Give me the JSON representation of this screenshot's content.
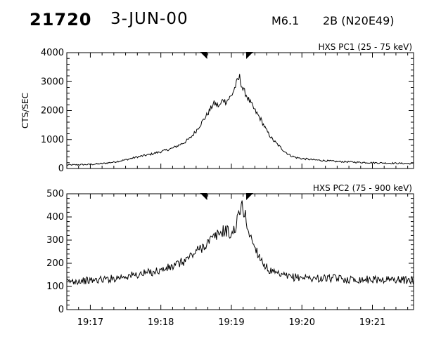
{
  "header": {
    "event_id": "21720",
    "date": "3-JUN-00",
    "flare_class": "M6.1",
    "optical_loc": "2B (N20E49)"
  },
  "chart_data": [
    {
      "type": "line",
      "title": "HXS PC1 (25 - 75 keV)",
      "ylabel": "CTS/SEC",
      "ylim": [
        0,
        4000
      ],
      "yticks": [
        0,
        1000,
        2000,
        3000,
        4000
      ],
      "tick_labels_y": [
        "0",
        "1000",
        "2000",
        "3000",
        "4000"
      ],
      "xlim": [
        "19:16:40",
        "19:21:35"
      ],
      "markers": [
        "19:18:37",
        "19:19:15"
      ],
      "series": [
        {
          "x": [
            "19:16:40",
            "19:16:50",
            "19:17:00",
            "19:17:10",
            "19:17:20",
            "19:17:30",
            "19:17:40",
            "19:17:50",
            "19:18:00",
            "19:18:10",
            "19:18:15",
            "19:18:20",
            "19:18:25",
            "19:18:30",
            "19:18:35",
            "19:18:40",
            "19:18:45",
            "19:18:50",
            "19:18:53",
            "19:18:55",
            "19:19:00",
            "19:19:02",
            "19:19:05",
            "19:19:07",
            "19:19:10",
            "19:19:12",
            "19:19:15",
            "19:19:20",
            "19:19:25",
            "19:19:30",
            "19:19:35",
            "19:19:40",
            "19:19:45",
            "19:19:50",
            "19:19:55",
            "19:20:00",
            "19:20:10",
            "19:20:20",
            "19:20:30",
            "19:20:40",
            "19:20:50",
            "19:21:00",
            "19:21:10",
            "19:21:20",
            "19:21:35"
          ],
          "values": [
            120,
            130,
            140,
            170,
            220,
            300,
            400,
            480,
            580,
            700,
            800,
            900,
            1050,
            1300,
            1600,
            1900,
            2250,
            2150,
            2400,
            2300,
            2500,
            2700,
            3000,
            3150,
            2700,
            2600,
            2350,
            2000,
            1700,
            1300,
            1000,
            800,
            600,
            450,
            380,
            340,
            300,
            270,
            240,
            230,
            210,
            200,
            190,
            180,
            170
          ]
        }
      ]
    },
    {
      "type": "line",
      "title": "HXS PC2 (75 - 900 keV)",
      "ylabel": "",
      "ylim": [
        0,
        500
      ],
      "yticks": [
        0,
        100,
        200,
        300,
        400,
        500
      ],
      "tick_labels_y": [
        "0",
        "100",
        "200",
        "300",
        "400",
        "500"
      ],
      "xlim": [
        "19:16:40",
        "19:21:35"
      ],
      "tick_labels_x": [
        "19:17",
        "19:18",
        "19:19",
        "19:20",
        "19:21"
      ],
      "markers": [
        "19:18:37",
        "19:19:15"
      ],
      "series": [
        {
          "x": [
            "19:16:40",
            "19:16:50",
            "19:17:00",
            "19:17:10",
            "19:17:20",
            "19:17:30",
            "19:17:40",
            "19:17:50",
            "19:18:00",
            "19:18:10",
            "19:18:20",
            "19:18:30",
            "19:18:35",
            "19:18:40",
            "19:18:45",
            "19:18:50",
            "19:18:55",
            "19:19:00",
            "19:19:03",
            "19:19:06",
            "19:19:09",
            "19:19:12",
            "19:19:15",
            "19:19:20",
            "19:19:25",
            "19:19:30",
            "19:19:35",
            "19:19:40",
            "19:19:50",
            "19:20:00",
            "19:20:10",
            "19:20:20",
            "19:20:30",
            "19:20:40",
            "19:20:50",
            "19:21:00",
            "19:21:10",
            "19:21:20",
            "19:21:35"
          ],
          "values": [
            120,
            125,
            125,
            130,
            135,
            145,
            150,
            160,
            170,
            185,
            210,
            250,
            270,
            290,
            310,
            330,
            345,
            320,
            350,
            400,
            450,
            400,
            330,
            270,
            220,
            180,
            160,
            150,
            140,
            140,
            135,
            135,
            135,
            130,
            130,
            130,
            130,
            130,
            125
          ]
        }
      ]
    }
  ]
}
